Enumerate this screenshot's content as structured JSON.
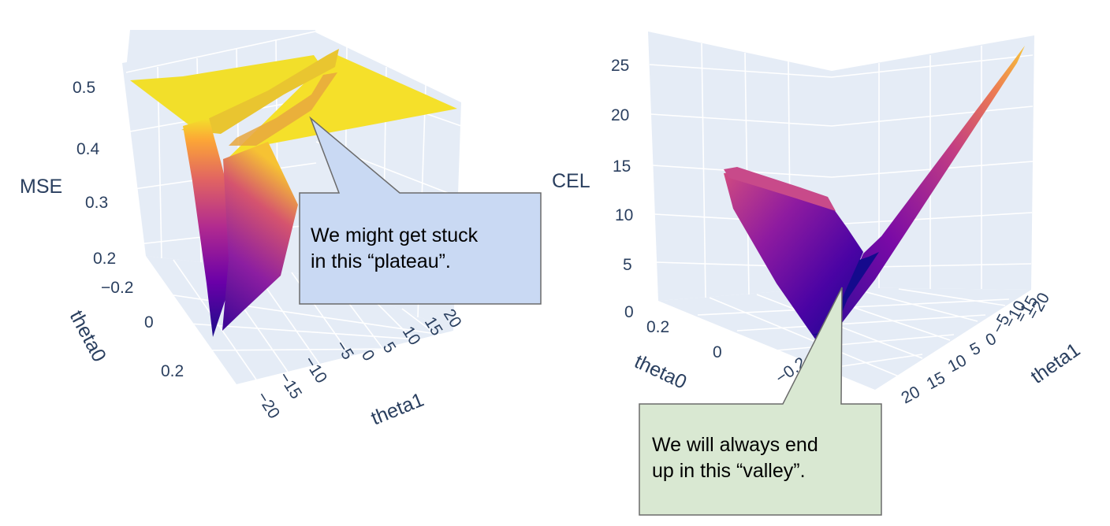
{
  "chart_data": [
    {
      "type": "surface",
      "zlabel": "MSE",
      "xlabel": "theta1",
      "ylabel": "theta0",
      "z_ticks": [
        "0.2",
        "0.3",
        "0.4",
        "0.5"
      ],
      "theta1_ticks": [
        "−20",
        "−15",
        "−10",
        "−5",
        "0",
        "5",
        "10",
        "15",
        "20"
      ],
      "theta0_ticks": [
        "−0.2",
        "0",
        "0.2"
      ],
      "zlim": [
        0.2,
        0.5
      ],
      "xlim": [
        -20,
        20
      ],
      "ylim": [
        -0.25,
        0.25
      ],
      "colorscale": "plasma",
      "grid": true,
      "annotation": "We might get stuck\nin this “plateau”."
    },
    {
      "type": "surface",
      "zlabel": "CEL",
      "xlabel": "theta1",
      "ylabel": "theta0",
      "z_ticks": [
        "0",
        "5",
        "10",
        "15",
        "20",
        "25"
      ],
      "theta1_ticks": [
        "20",
        "15",
        "10",
        "5",
        "0",
        "−5",
        "−10",
        "−15",
        "−20"
      ],
      "theta0_ticks": [
        "0.2",
        "0",
        "−0.2"
      ],
      "zlim": [
        0,
        27
      ],
      "xlim": [
        -20,
        20
      ],
      "ylim": [
        -0.25,
        0.25
      ],
      "colorscale": "plasma",
      "grid": true,
      "annotation": "We will always end\nup in this “valley”."
    }
  ],
  "colors": {
    "scene_bg": "#e5ecf6",
    "grid": "#ffffff",
    "axis_text": "#2a3f5f",
    "plasma": [
      "#0d0887",
      "#46039f",
      "#7201a8",
      "#9c179e",
      "#bd3786",
      "#d8576b",
      "#ed7953",
      "#fb9f3a",
      "#fdca26",
      "#f0f921"
    ],
    "plateau_yellow": "#f5e02a",
    "callout1_fill": "#c9d9f3",
    "callout2_fill": "#d9e8d2",
    "callout_border": "#6b6b6b"
  }
}
